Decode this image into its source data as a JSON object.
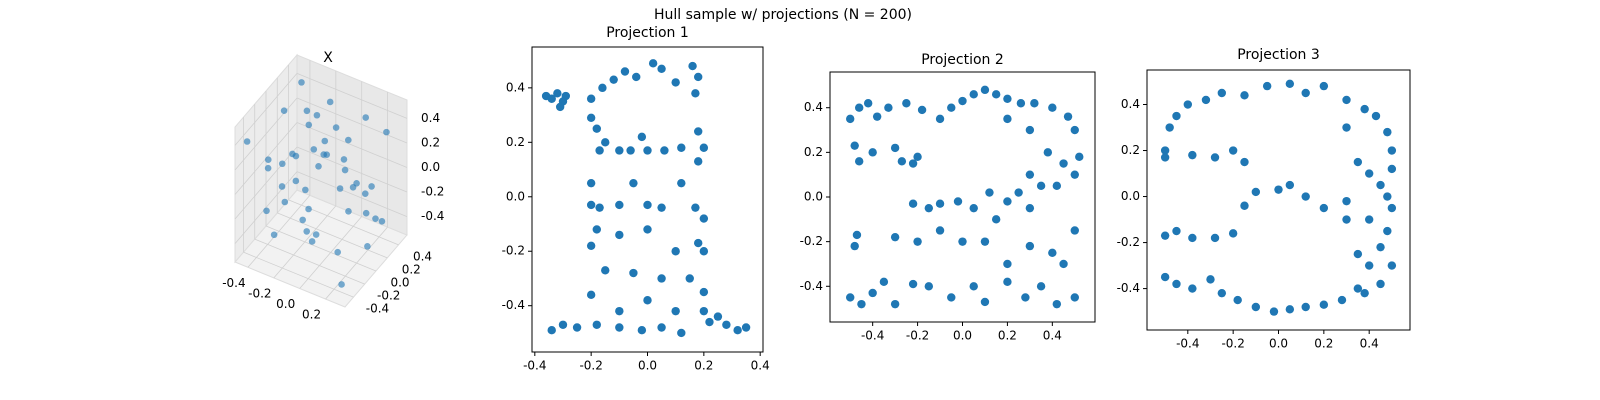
{
  "title": "Hull sample w/ projections (N = 200)",
  "chart_data": [
    {
      "type": "scatter3d",
      "title": "X",
      "xlim": [
        -0.5,
        0.35
      ],
      "ylim": [
        -0.55,
        0.55
      ],
      "zlim": [
        -0.55,
        0.55
      ],
      "xticks": [
        -0.4,
        -0.2,
        {
          "value": 0,
          "label": "0.0"
        },
        0.2
      ],
      "yticks": [
        -0.4,
        -0.2,
        {
          "value": 0,
          "label": "0.0"
        },
        0.2,
        0.4
      ],
      "zticks": [
        -0.4,
        -0.2,
        {
          "value": 0,
          "label": "0.0"
        },
        0.2,
        0.4
      ],
      "series": [
        {
          "color": "#1f77b4",
          "x": [
            -0.45,
            -0.4,
            -0.35,
            -0.3,
            -0.25,
            -0.2,
            -0.15,
            -0.1,
            -0.05,
            0,
            0.05,
            0.1,
            0.15,
            0.2,
            0.25,
            0.3,
            -0.42,
            -0.33,
            -0.22,
            -0.12,
            0.02,
            0.12,
            0.22,
            0.28,
            -0.38,
            -0.28,
            -0.18,
            -0.08,
            0.08,
            0.18,
            -0.44,
            -0.36,
            -0.26,
            -0.16,
            -0.06,
            0.04,
            0.14,
            0.24,
            -0.3,
            -0.1,
            0.1,
            0.26,
            -0.4,
            -0.2,
            0,
            0.2
          ],
          "y": [
            -0.45,
            0.4,
            -0.2,
            0.3,
            0.45,
            -0.4,
            0.1,
            -0.1,
            0.35,
            -0.45,
            0.2,
            -0.3,
            0.45,
            0,
            -0.45,
            0.3,
            0.15,
            -0.35,
            0.4,
            -0.15,
            0.05,
            0.45,
            -0.25,
            -0.45,
            0.45,
            0.25,
            -0.45,
            0.35,
            -0.4,
            0.2,
            -0.1,
            0,
            0.1,
            -0.25,
            0.45,
            -0.35,
            0.3,
            0.1,
            -0.45,
            -0.45,
            0.4,
            -0.2,
            0.3,
            0.45,
            -0.3,
            0.45
          ],
          "z": [
            0.4,
            0.45,
            -0.45,
            0.2,
            -0.1,
            0.3,
            0.45,
            -0.45,
            0,
            0.2,
            -0.3,
            0.45,
            -0.45,
            0.1,
            -0.2,
            0.4,
            -0.4,
            0.25,
            0.05,
            -0.35,
            0.45,
            -0.2,
            0.35,
            -0.45,
            0.2,
            -0.45,
            0.15,
            -0.25,
            0.4,
            -0.1,
            0,
            0.45,
            -0.45,
            0.3,
            0.1,
            -0.2,
            0.45,
            -0.45,
            -0.1,
            0.45,
            -0.4,
            0.2,
            -0.3,
            0.35,
            0.45,
            -0.45
          ]
        }
      ]
    },
    {
      "type": "scatter",
      "title": "Projection 1",
      "xlim": [
        -0.41,
        0.41
      ],
      "ylim": [
        -0.57,
        0.55
      ],
      "xticks": [
        -0.4,
        -0.2,
        {
          "value": 0,
          "label": "0.0"
        },
        0.2,
        0.4
      ],
      "yticks": [
        -0.4,
        -0.2,
        {
          "value": 0,
          "label": "0.0"
        },
        0.2,
        0.4
      ],
      "series": [
        {
          "color": "#1f77b4",
          "x": [
            -0.36,
            -0.34,
            -0.32,
            -0.3,
            -0.29,
            -0.31,
            -0.2,
            -0.16,
            -0.12,
            -0.08,
            -0.04,
            0.02,
            0.05,
            0.1,
            0.16,
            0.18,
            0.17,
            -0.2,
            -0.18,
            -0.15,
            -0.17,
            -0.1,
            -0.06,
            0,
            0.06,
            0.12,
            0.18,
            0.2,
            0.18,
            -0.02,
            -0.2,
            -0.2,
            -0.17,
            -0.1,
            -0.05,
            0,
            0.05,
            0.12,
            0.17,
            0.2,
            -0.18,
            -0.2,
            -0.1,
            0,
            0.1,
            0.18,
            0.2,
            -0.15,
            -0.05,
            0.05,
            0.15,
            0.2,
            -0.2,
            -0.1,
            0,
            0.1,
            0.2,
            -0.34,
            -0.3,
            -0.25,
            -0.18,
            -0.1,
            -0.02,
            0.05,
            0.12,
            0.22,
            0.28,
            0.32,
            0.35,
            0.25
          ],
          "y": [
            0.37,
            0.36,
            0.38,
            0.35,
            0.37,
            0.33,
            0.36,
            0.4,
            0.43,
            0.46,
            0.44,
            0.49,
            0.47,
            0.42,
            0.48,
            0.44,
            0.38,
            0.29,
            0.25,
            0.2,
            0.17,
            0.17,
            0.17,
            0.17,
            0.17,
            0.18,
            0.24,
            0.18,
            0.13,
            0.22,
            0.05,
            -0.03,
            -0.04,
            -0.03,
            0.05,
            -0.03,
            -0.04,
            0.05,
            -0.04,
            -0.08,
            -0.12,
            -0.18,
            -0.14,
            -0.12,
            -0.2,
            -0.17,
            -0.2,
            -0.27,
            -0.28,
            -0.3,
            -0.3,
            -0.35,
            -0.36,
            -0.42,
            -0.38,
            -0.42,
            -0.42,
            -0.49,
            -0.47,
            -0.48,
            -0.47,
            -0.48,
            -0.49,
            -0.48,
            -0.5,
            -0.46,
            -0.47,
            -0.49,
            -0.48,
            -0.44
          ]
        }
      ]
    },
    {
      "type": "scatter",
      "title": "Projection 2",
      "xlim": [
        -0.59,
        0.59
      ],
      "ylim": [
        -0.56,
        0.56
      ],
      "xticks": [
        -0.4,
        -0.2,
        {
          "value": 0,
          "label": "0.0"
        },
        0.2,
        0.4
      ],
      "yticks": [
        -0.4,
        -0.2,
        {
          "value": 0,
          "label": "0.0"
        },
        0.2,
        0.4
      ],
      "series": [
        {
          "color": "#1f77b4",
          "x": [
            -0.5,
            -0.46,
            -0.42,
            -0.38,
            -0.33,
            -0.25,
            -0.18,
            -0.1,
            -0.05,
            0,
            0.05,
            0.1,
            0.15,
            0.2,
            0.26,
            0.32,
            0.4,
            0.47,
            0.5,
            -0.48,
            -0.46,
            -0.4,
            -0.3,
            -0.27,
            -0.22,
            -0.2,
            0.2,
            0.3,
            0.38,
            0.45,
            0.52,
            0.5,
            0.42,
            0.35,
            0.3,
            0.25,
            0.2,
            0.12,
            0.05,
            -0.02,
            -0.1,
            -0.15,
            -0.22,
            0.15,
            0.3,
            -0.47,
            -0.48,
            -0.3,
            -0.2,
            -0.1,
            0,
            0.1,
            0.2,
            0.3,
            0.4,
            0.45,
            0.5,
            -0.5,
            -0.45,
            -0.4,
            -0.35,
            -0.3,
            -0.22,
            -0.15,
            -0.05,
            0.05,
            0.1,
            0.2,
            0.28,
            0.35,
            0.42,
            0.5
          ],
          "y": [
            0.35,
            0.4,
            0.42,
            0.36,
            0.4,
            0.42,
            0.39,
            0.35,
            0.4,
            0.43,
            0.46,
            0.48,
            0.46,
            0.44,
            0.42,
            0.42,
            0.4,
            0.36,
            0.3,
            0.23,
            0.16,
            0.2,
            0.22,
            0.16,
            0.15,
            0.18,
            0.35,
            0.3,
            0.2,
            0.15,
            0.18,
            0.1,
            0.05,
            0.05,
            0.1,
            0.02,
            -0.02,
            0.02,
            -0.05,
            -0.02,
            -0.03,
            -0.05,
            -0.03,
            -0.1,
            -0.05,
            -0.17,
            -0.22,
            -0.18,
            -0.2,
            -0.15,
            -0.2,
            -0.2,
            -0.3,
            -0.22,
            -0.25,
            -0.3,
            -0.15,
            -0.45,
            -0.48,
            -0.43,
            -0.38,
            -0.48,
            -0.39,
            -0.4,
            -0.45,
            -0.4,
            -0.47,
            -0.38,
            -0.45,
            -0.4,
            -0.48,
            -0.45
          ]
        }
      ]
    },
    {
      "type": "scatter",
      "title": "Projection 3",
      "xlim": [
        -0.58,
        0.58
      ],
      "ylim": [
        -0.58,
        0.55
      ],
      "xticks": [
        -0.4,
        -0.2,
        {
          "value": 0,
          "label": "0.0"
        },
        0.2,
        0.4
      ],
      "yticks": [
        -0.4,
        -0.2,
        {
          "value": 0,
          "label": "0.0"
        },
        0.2,
        0.4
      ],
      "series": [
        {
          "color": "#1f77b4",
          "x": [
            -0.5,
            -0.48,
            -0.45,
            -0.4,
            -0.32,
            -0.25,
            -0.15,
            -0.05,
            0.05,
            0.12,
            0.2,
            0.3,
            0.38,
            0.43,
            0.48,
            0.5,
            0.5,
            -0.5,
            -0.38,
            -0.28,
            -0.2,
            -0.15,
            0.3,
            0.35,
            0.4,
            0.45,
            0.48,
            0.5,
            -0.15,
            -0.1,
            0,
            0.05,
            0.12,
            0.2,
            0.3,
            0.4,
            0.48,
            0.45,
            0.35,
            0.3,
            -0.5,
            -0.45,
            -0.38,
            -0.28,
            -0.2,
            0.4,
            0.45,
            0.38,
            -0.5,
            -0.45,
            -0.38,
            -0.3,
            -0.25,
            -0.18,
            -0.1,
            -0.02,
            0.05,
            0.12,
            0.2,
            0.28,
            0.35,
            0.5
          ],
          "y": [
            0.2,
            0.3,
            0.35,
            0.4,
            0.42,
            0.45,
            0.44,
            0.48,
            0.49,
            0.45,
            0.48,
            0.42,
            0.38,
            0.35,
            0.28,
            0.2,
            0.12,
            0.17,
            0.18,
            0.17,
            0.2,
            0.15,
            0.3,
            0.15,
            0.1,
            0.05,
            0,
            -0.05,
            -0.04,
            0.02,
            0.03,
            0.05,
            0,
            -0.05,
            -0.02,
            -0.1,
            -0.15,
            -0.22,
            -0.25,
            -0.1,
            -0.17,
            -0.15,
            -0.18,
            -0.18,
            -0.16,
            -0.3,
            -0.38,
            -0.42,
            -0.35,
            -0.38,
            -0.4,
            -0.36,
            -0.42,
            -0.45,
            -0.48,
            -0.5,
            -0.49,
            -0.48,
            -0.47,
            -0.45,
            -0.4,
            -0.3
          ]
        }
      ]
    }
  ]
}
